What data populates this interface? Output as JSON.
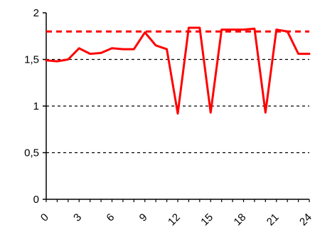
{
  "chart_data": {
    "type": "line",
    "title": "",
    "xlabel": "",
    "ylabel": "",
    "xlim": [
      0,
      24
    ],
    "ylim": [
      0,
      2
    ],
    "y_ticks": [
      {
        "value": 0,
        "label": "0"
      },
      {
        "value": 0.5,
        "label": "0,5"
      },
      {
        "value": 1,
        "label": "1"
      },
      {
        "value": 1.5,
        "label": "1,5"
      },
      {
        "value": 2,
        "label": "2"
      }
    ],
    "x_ticks": [
      {
        "value": 0,
        "label": "0"
      },
      {
        "value": 3,
        "label": "3"
      },
      {
        "value": 6,
        "label": "6"
      },
      {
        "value": 9,
        "label": "9"
      },
      {
        "value": 12,
        "label": "12"
      },
      {
        "value": 15,
        "label": "15"
      },
      {
        "value": 18,
        "label": "18"
      },
      {
        "value": 21,
        "label": "21"
      },
      {
        "value": 24,
        "label": "24"
      }
    ],
    "x_tick_label_rotation_deg": -45,
    "gridlines": {
      "axis": "y",
      "style": "dashed",
      "color": "#000000",
      "values": [
        0.5,
        1,
        1.5
      ]
    },
    "reference_line": {
      "value": 1.8,
      "style": "dashed",
      "color": "#ff0000"
    },
    "series": [
      {
        "color": "#ff0000",
        "x": [
          0,
          1,
          2,
          3,
          4,
          5,
          6,
          7,
          8,
          9,
          10,
          11,
          12,
          13,
          14,
          15,
          16,
          17,
          18,
          19,
          20,
          21,
          22,
          23,
          24
        ],
        "values": [
          1.49,
          1.48,
          1.5,
          1.62,
          1.56,
          1.57,
          1.62,
          1.61,
          1.61,
          1.79,
          1.65,
          1.61,
          0.92,
          1.84,
          1.84,
          0.93,
          1.82,
          1.82,
          1.82,
          1.83,
          0.93,
          1.82,
          1.8,
          1.56,
          1.56
        ]
      }
    ]
  }
}
